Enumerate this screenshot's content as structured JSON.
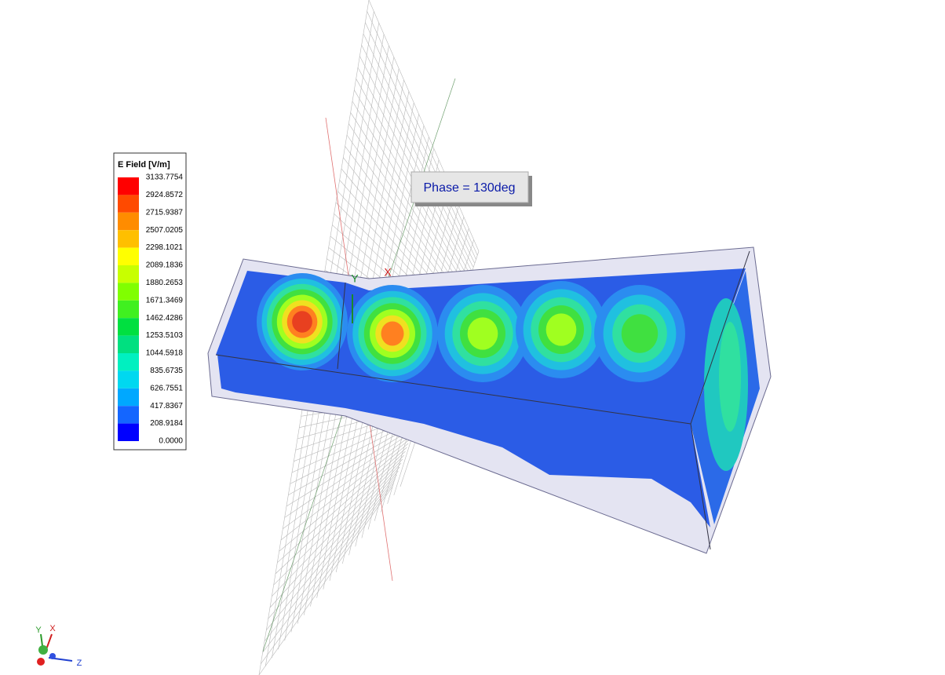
{
  "legend": {
    "title": "E Field [V/m]",
    "labels": [
      "3133.7754",
      "2924.8572",
      "2715.9387",
      "2507.0205",
      "2298.1021",
      "2089.1836",
      "1880.2653",
      "1671.3469",
      "1462.4286",
      "1253.5103",
      "1044.5918",
      "835.6735",
      "626.7551",
      "417.8367",
      "208.9184",
      "0.0000"
    ],
    "colors": [
      "#ff0000",
      "#ff4a00",
      "#ff8c00",
      "#ffbf00",
      "#ffff00",
      "#c8ff00",
      "#80ff00",
      "#40f020",
      "#00e040",
      "#00e080",
      "#00f0c0",
      "#00d8f0",
      "#00a8ff",
      "#1466ff",
      "#0000ff"
    ]
  },
  "phase_label": "Phase = 130deg",
  "scene_axes": {
    "y": "Y",
    "x": "X"
  },
  "triad": {
    "y": "Y",
    "x": "X",
    "z": "Z"
  }
}
